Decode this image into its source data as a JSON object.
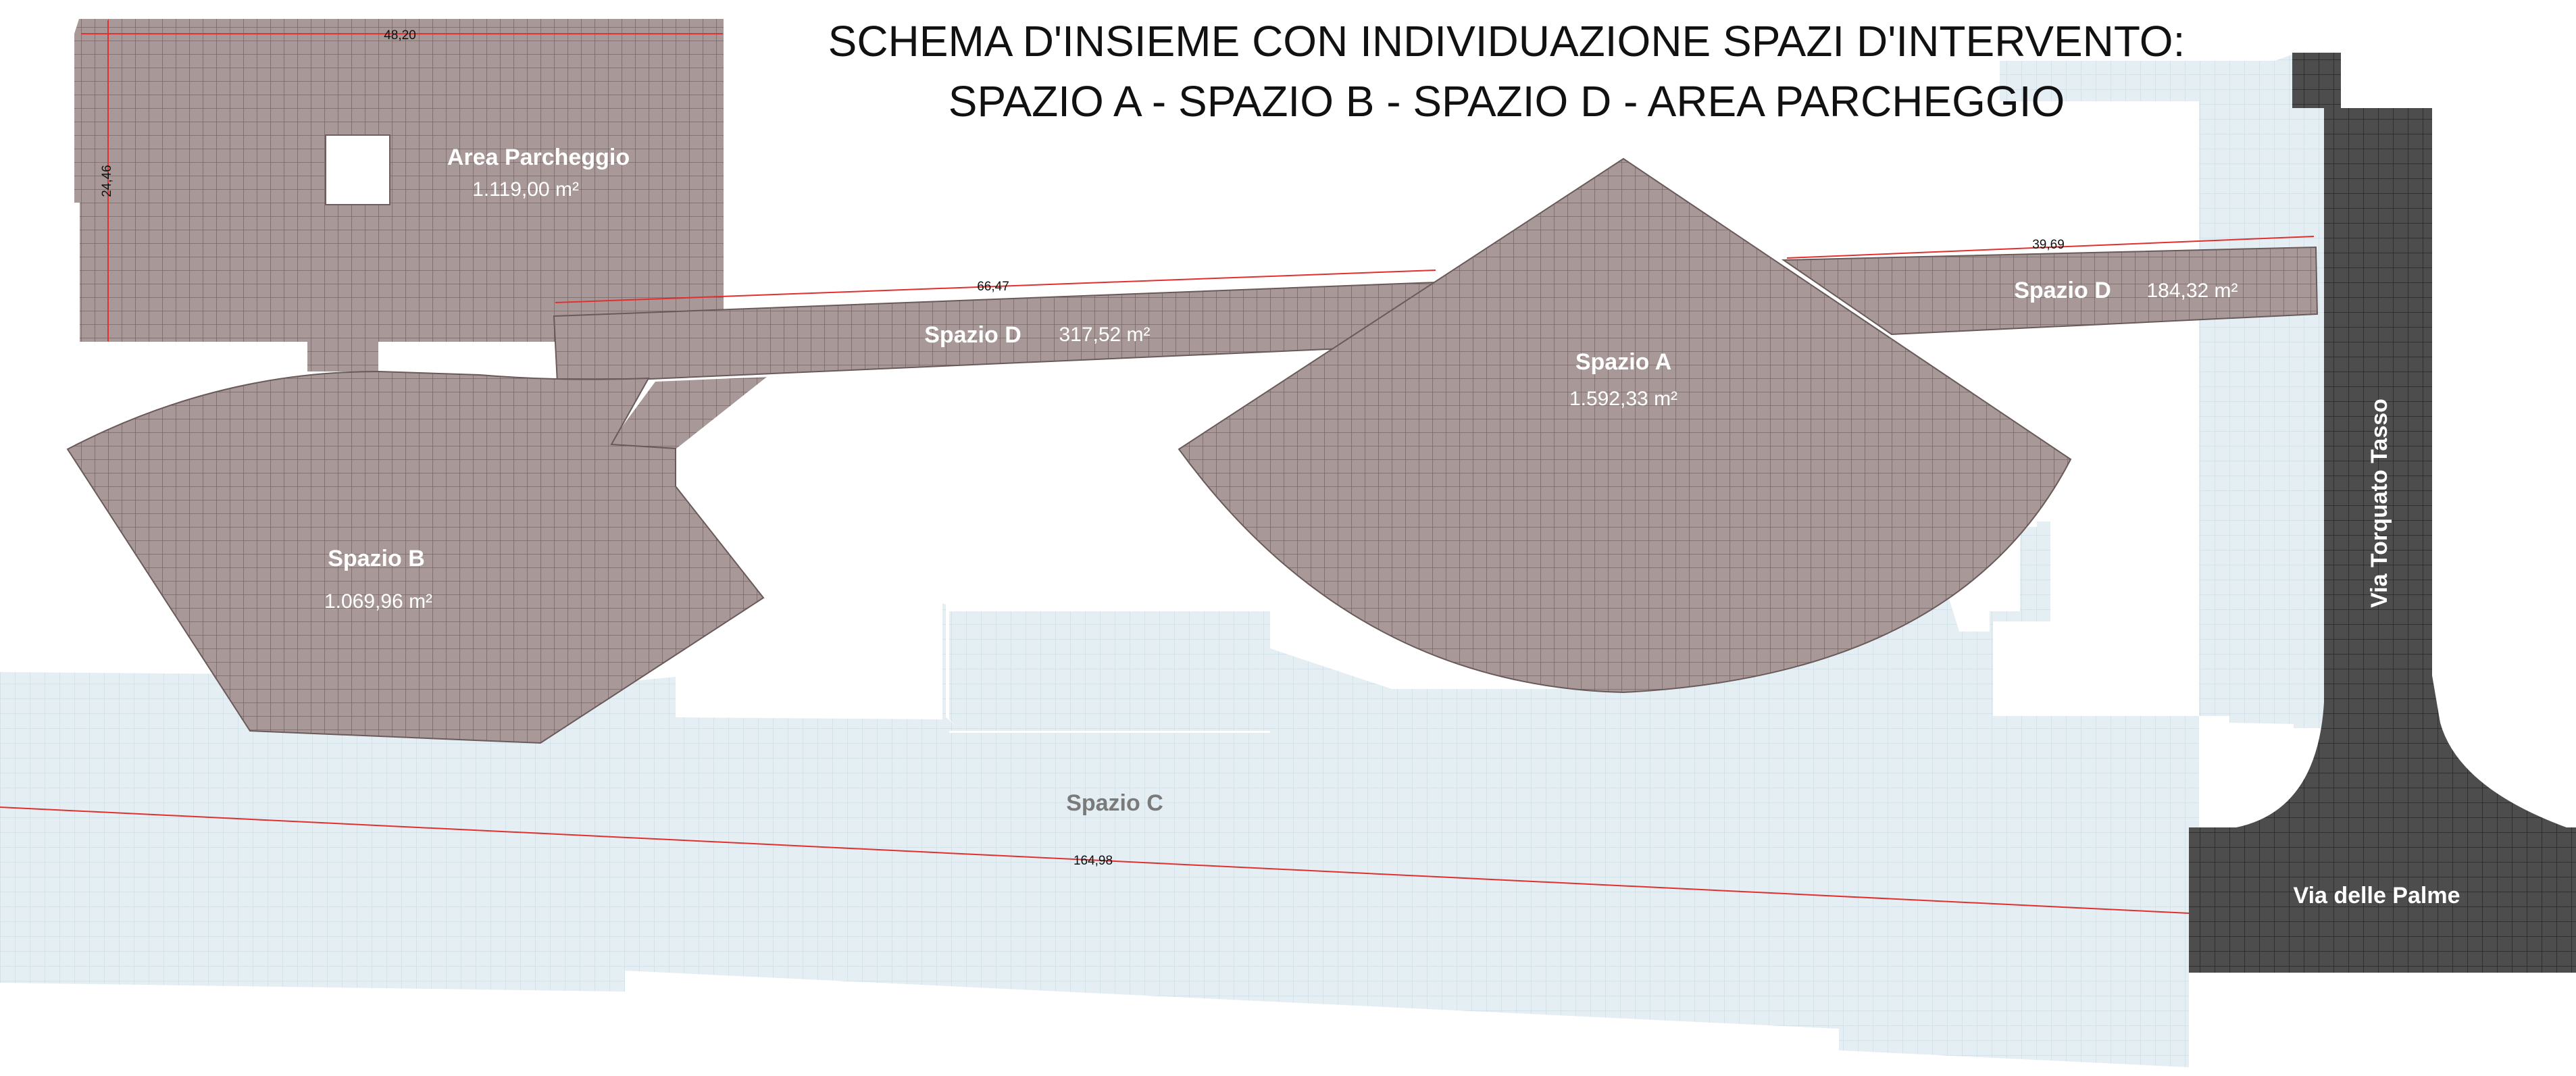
{
  "title": {
    "line1": "SCHEMA D'INSIEME CON INDIVIDUAZIONE SPAZI D'INTERVENTO:",
    "line2": "SPAZIO A - SPAZIO B - SPAZIO D - AREA PARCHEGGIO"
  },
  "zones": {
    "parking": {
      "name": "Area Parcheggio",
      "area": "1.119,00 m²"
    },
    "space_a": {
      "name": "Spazio A",
      "area": "1.592,33 m²"
    },
    "space_b": {
      "name": "Spazio B",
      "area": "1.069,96 m²"
    },
    "space_c": {
      "name": "Spazio C"
    },
    "space_d_left": {
      "name": "Spazio D",
      "area": "317,52 m²"
    },
    "space_d_right": {
      "name": "Spazio D",
      "area": "184,32 m²"
    }
  },
  "dimensions": {
    "parking_width": "48,20",
    "parking_height": "24,46",
    "space_d_left_length": "66,47",
    "space_d_right_length": "39,69",
    "space_c_length": "164,98"
  },
  "streets": {
    "via_torquato_tasso": "Via Torquato Tasso",
    "via_delle_palme": "Via delle Palme"
  },
  "colors": {
    "zone_fill": "#a89898",
    "space_c_fill": "#e4eef3",
    "street_fill": "#4d4d4d",
    "dimension_line": "#e03030"
  }
}
